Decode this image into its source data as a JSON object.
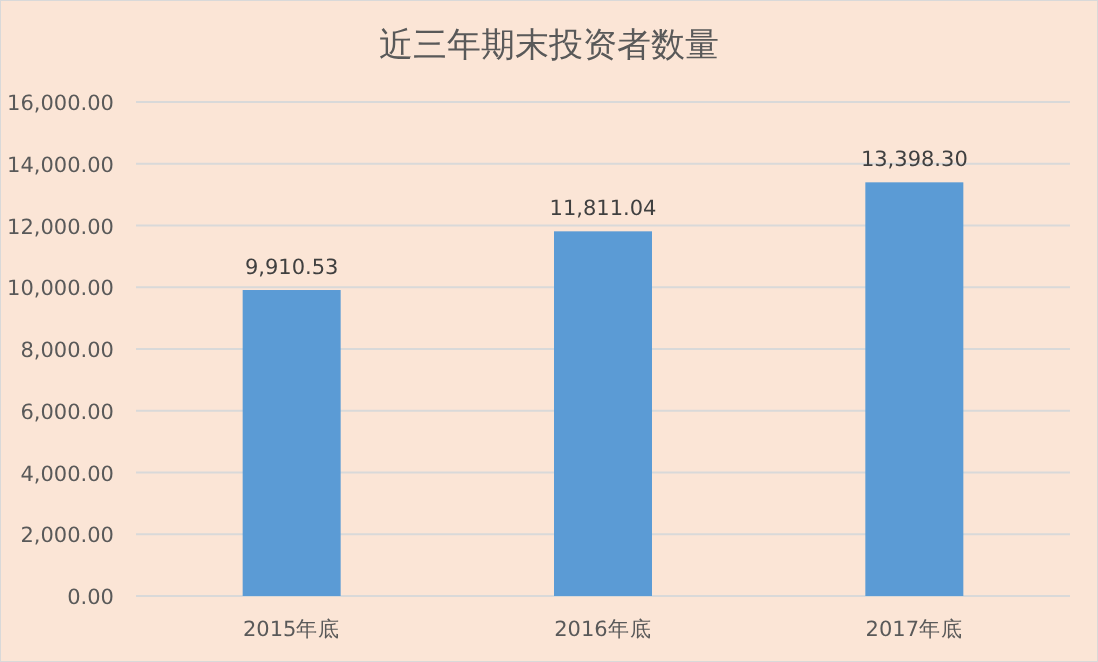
{
  "chart_data": {
    "type": "bar",
    "title": "近三年期末投资者数量",
    "categories": [
      "2015年底",
      "2016年底",
      "2017年底"
    ],
    "values": [
      9910.53,
      11811.04,
      13398.3
    ],
    "value_labels": [
      "9,910.53",
      "11,811.04",
      "13,398.30"
    ],
    "color": "#5b9bd5",
    "ylim": [
      0,
      16000
    ],
    "yticks": [
      {
        "value": 0,
        "label": "0.00"
      },
      {
        "value": 2000,
        "label": "2,000.00"
      },
      {
        "value": 4000,
        "label": "4,000.00"
      },
      {
        "value": 6000,
        "label": "6,000.00"
      },
      {
        "value": 8000,
        "label": "8,000.00"
      },
      {
        "value": 10000,
        "label": "10,000.00"
      },
      {
        "value": 12000,
        "label": "12,000.00"
      },
      {
        "value": 14000,
        "label": "14,000.00"
      },
      {
        "value": 16000,
        "label": "16,000.00"
      }
    ],
    "grid": "y"
  }
}
